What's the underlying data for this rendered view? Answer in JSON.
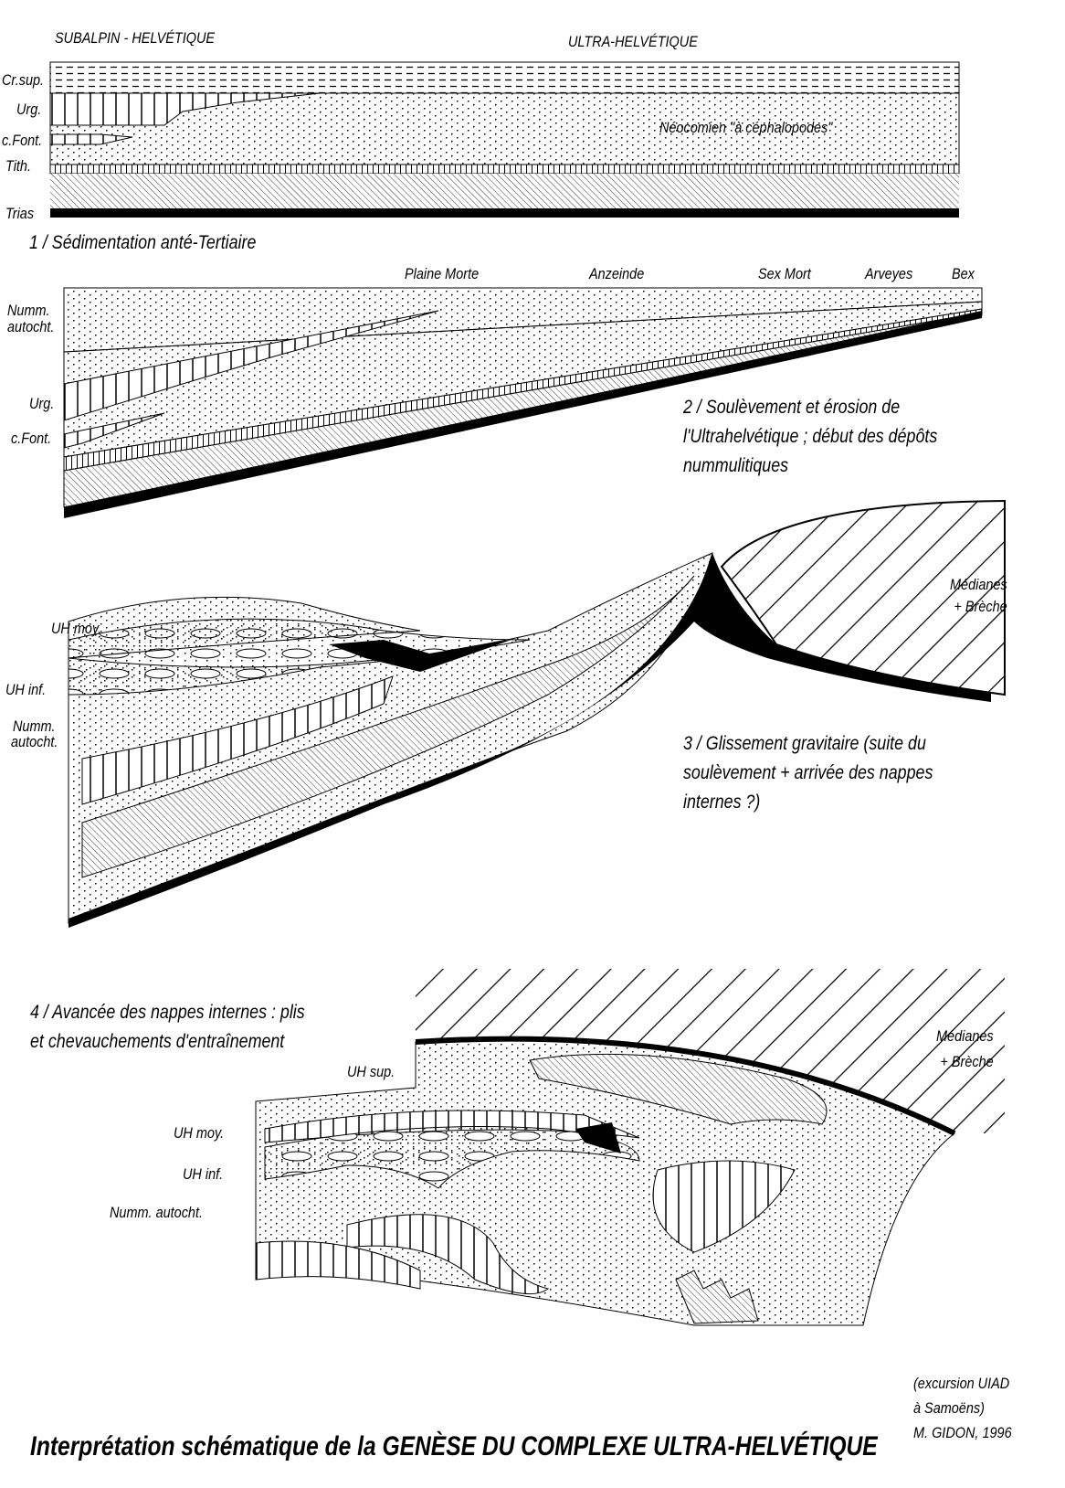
{
  "panel1": {
    "zone_left": "SUBALPIN - HELVÉTIQUE",
    "zone_right": "ULTRA-HELVÉTIQUE",
    "layers": [
      "Cr.sup.",
      "Urg.",
      "c.Font.",
      "Tith.",
      "Trias"
    ],
    "neocomien": "Néocomien \"à céphalopodes\"",
    "caption": "1 / Sédimentation anté-Tertiaire"
  },
  "panel2": {
    "localities": [
      "Plaine Morte",
      "Anzeinde",
      "Sex Mort",
      "Arveyes",
      "Bex"
    ],
    "layers": [
      "Numm.",
      "autocht.",
      "Urg.",
      "c.Font."
    ],
    "caption_lines": [
      "2 / Soulèvement et érosion de",
      "l'Ultrahelvétique ; début des dépôts",
      "nummulitiques"
    ]
  },
  "panel3": {
    "medianes": [
      "Médianes",
      "+ Brèche"
    ],
    "layers": [
      "UH moy.",
      "UH inf.",
      "Numm.",
      "autocht."
    ],
    "caption_lines": [
      "3 / Glissement  gravitaire (suite du",
      "soulèvement + arrivée des nappes",
      "internes ?)"
    ]
  },
  "panel4": {
    "caption_lines": [
      "4 / Avancée des nappes internes : plis",
      "et chevauchements d'entraînement"
    ],
    "medianes": [
      "Médianes",
      "+ Brèche"
    ],
    "layers": [
      "UH sup.",
      "UH moy.",
      "UH inf.",
      "Numm. autocht."
    ]
  },
  "title": "Interprétation schématique de la GENÈSE DU COMPLEXE ULTRA-HELVÉTIQUE",
  "credit": [
    "(excursion UIAD",
    "à Samoëns)",
    "M. GIDON, 1996"
  ]
}
